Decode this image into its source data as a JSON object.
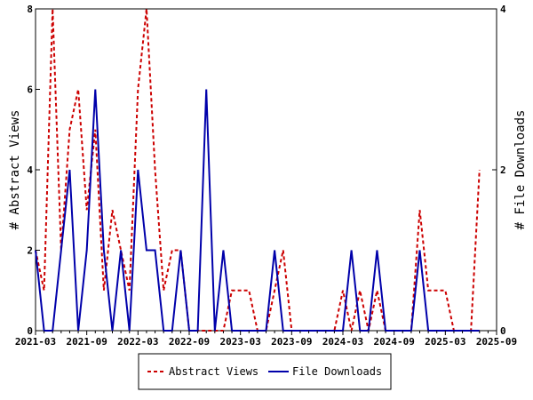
{
  "chart_data": {
    "type": "line",
    "ylabel_left": "# Abstract Views",
    "ylabel_right": "# File Downloads",
    "x_tick_labels": [
      "2021-03",
      "2021-09",
      "2022-03",
      "2022-09",
      "2023-03",
      "2023-09",
      "2024-03",
      "2024-09",
      "2025-03",
      "2025-09"
    ],
    "xlim": [
      0,
      54
    ],
    "ylim_left": [
      0,
      8
    ],
    "ylim_right": [
      0,
      4
    ],
    "y_ticks_left": [
      "0",
      "2",
      "4",
      "6",
      "8"
    ],
    "y_ticks_right": [
      "0",
      "2",
      "4"
    ],
    "legend_position": "bottom",
    "series": [
      {
        "name": "Abstract Views",
        "axis": "left",
        "color": "#cc0000",
        "dash": true,
        "points": [
          [
            0,
            2
          ],
          [
            1,
            1
          ],
          [
            2,
            8
          ],
          [
            3,
            2
          ],
          [
            4,
            5
          ],
          [
            5,
            6
          ],
          [
            6,
            3
          ],
          [
            7,
            5
          ],
          [
            8,
            1
          ],
          [
            9,
            3
          ],
          [
            10,
            2
          ],
          [
            11,
            1
          ],
          [
            12,
            6
          ],
          [
            13,
            8
          ],
          [
            14,
            4
          ],
          [
            15,
            1
          ],
          [
            16,
            2
          ],
          [
            17,
            2
          ],
          [
            18,
            0
          ],
          [
            19,
            0
          ],
          [
            20,
            0
          ],
          [
            21,
            0
          ],
          [
            22,
            0
          ],
          [
            23,
            1
          ],
          [
            24,
            1
          ],
          [
            25,
            1
          ],
          [
            26,
            0
          ],
          [
            27,
            0
          ],
          [
            28,
            1
          ],
          [
            29,
            2
          ],
          [
            30,
            0
          ],
          [
            31,
            0
          ],
          [
            32,
            0
          ],
          [
            33,
            0
          ],
          [
            34,
            0
          ],
          [
            35,
            0
          ],
          [
            36,
            1
          ],
          [
            37,
            0
          ],
          [
            38,
            1
          ],
          [
            39,
            0
          ],
          [
            40,
            1
          ],
          [
            41,
            0
          ],
          [
            42,
            0
          ],
          [
            43,
            0
          ],
          [
            44,
            0
          ],
          [
            45,
            3
          ],
          [
            46,
            1
          ],
          [
            47,
            1
          ],
          [
            48,
            1
          ],
          [
            49,
            0
          ],
          [
            50,
            0
          ],
          [
            51,
            0
          ],
          [
            52,
            4
          ]
        ]
      },
      {
        "name": "File Downloads",
        "axis": "right",
        "color": "#0000aa",
        "dash": false,
        "points": [
          [
            0,
            1
          ],
          [
            1,
            0
          ],
          [
            2,
            0
          ],
          [
            3,
            1
          ],
          [
            4,
            2
          ],
          [
            5,
            0
          ],
          [
            6,
            1
          ],
          [
            7,
            3
          ],
          [
            8,
            1
          ],
          [
            9,
            0
          ],
          [
            10,
            1
          ],
          [
            11,
            0
          ],
          [
            12,
            2
          ],
          [
            13,
            1
          ],
          [
            14,
            1
          ],
          [
            15,
            0
          ],
          [
            16,
            0
          ],
          [
            17,
            1
          ],
          [
            18,
            0
          ],
          [
            19,
            0
          ],
          [
            20,
            3
          ],
          [
            21,
            0
          ],
          [
            22,
            1
          ],
          [
            23,
            0
          ],
          [
            24,
            0
          ],
          [
            25,
            0
          ],
          [
            26,
            0
          ],
          [
            27,
            0
          ],
          [
            28,
            1
          ],
          [
            29,
            0
          ],
          [
            30,
            0
          ],
          [
            31,
            0
          ],
          [
            32,
            0
          ],
          [
            33,
            0
          ],
          [
            34,
            0
          ],
          [
            35,
            0
          ],
          [
            36,
            0
          ],
          [
            37,
            1
          ],
          [
            38,
            0
          ],
          [
            39,
            0
          ],
          [
            40,
            1
          ],
          [
            41,
            0
          ],
          [
            42,
            0
          ],
          [
            43,
            0
          ],
          [
            44,
            0
          ],
          [
            45,
            1
          ],
          [
            46,
            0
          ],
          [
            47,
            0
          ],
          [
            48,
            0
          ],
          [
            49,
            0
          ],
          [
            50,
            0
          ],
          [
            51,
            0
          ],
          [
            52,
            0
          ]
        ]
      }
    ]
  }
}
